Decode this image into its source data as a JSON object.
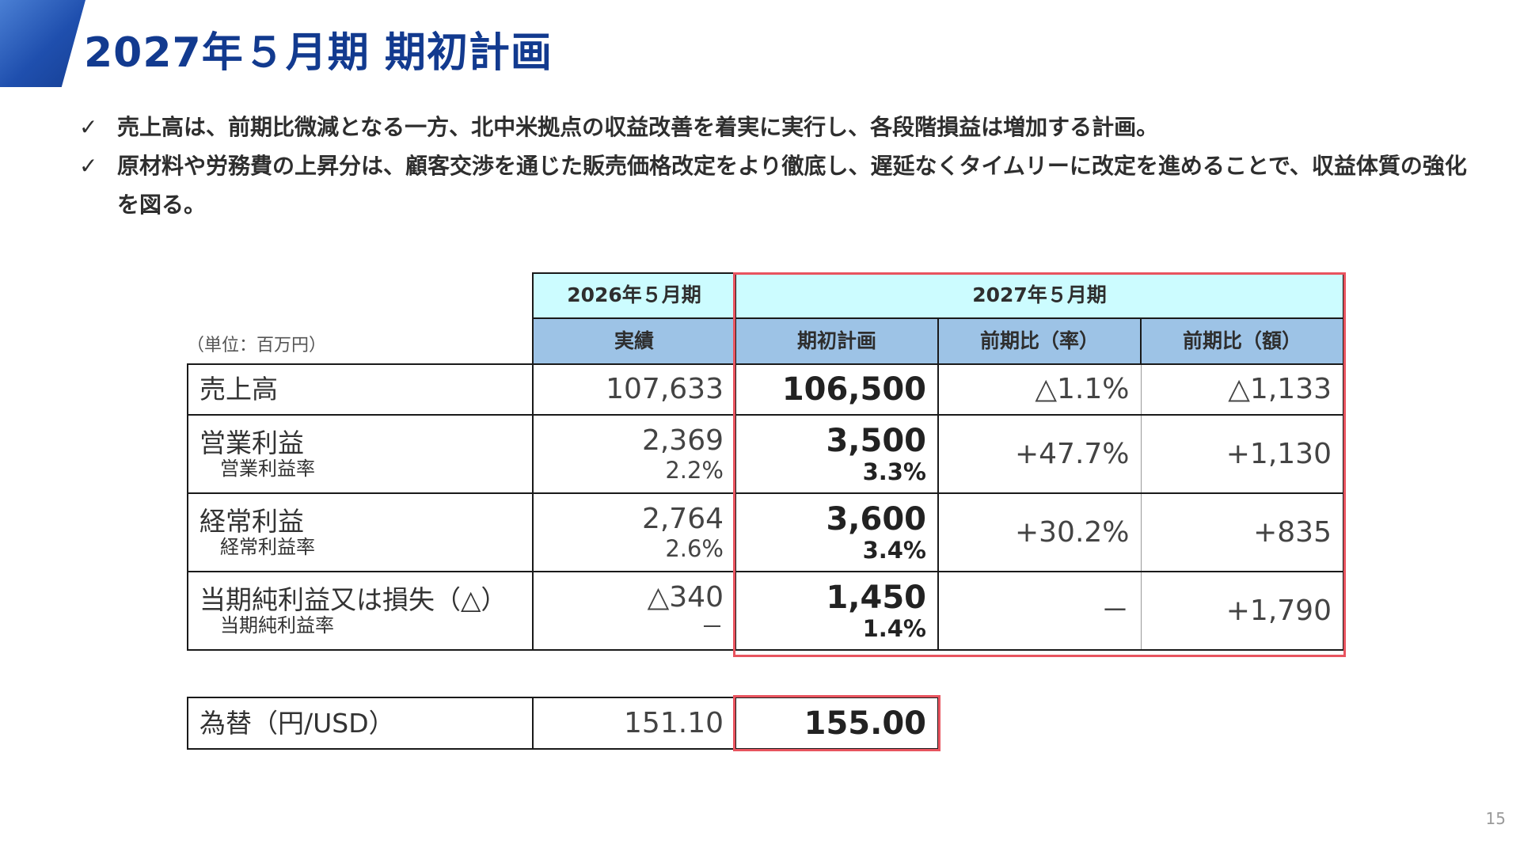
{
  "title": "2027年５月期 期初計画",
  "bullets": [
    "売上高は、前期比微減となる一方、北中米拠点の収益改善を着実に実行し、各段階損益は増加する計画。",
    "原材料や労務費の上昇分は、顧客交渉を通じた販売価格改定をより徹底し、遅延なくタイムリーに改定を進めることで、収益体質の強化を図る。"
  ],
  "bullet_mark": "✓",
  "unit": "（単位：百万円）",
  "header": {
    "fy2026": "2026年５月期",
    "fy2027": "2027年５月期",
    "actual": "実績",
    "plan": "期初計画",
    "yoy_rate": "前期比（率）",
    "yoy_amount": "前期比（額）"
  },
  "rows": [
    {
      "label": "売上高",
      "actual": "107,633",
      "plan": "106,500",
      "yoy_rate": "△1.1%",
      "yoy_amount": "△1,133"
    },
    {
      "label": "営業利益",
      "sublabel": "営業利益率",
      "actual": "2,369",
      "actual_sub": "2.2%",
      "plan": "3,500",
      "plan_sub": "3.3%",
      "yoy_rate": "+47.7%",
      "yoy_amount": "+1,130"
    },
    {
      "label": "経常利益",
      "sublabel": "経常利益率",
      "actual": "2,764",
      "actual_sub": "2.6%",
      "plan": "3,600",
      "plan_sub": "3.4%",
      "yoy_rate": "+30.2%",
      "yoy_amount": "+835"
    },
    {
      "label": "当期純利益又は損失（△）",
      "sublabel": "当期純利益率",
      "actual": "△340",
      "actual_sub": "－",
      "plan": "1,450",
      "plan_sub": "1.4%",
      "yoy_rate": "－",
      "yoy_amount": "+1,790"
    }
  ],
  "fx": {
    "label": "為替（円/USD）",
    "actual": "151.10",
    "plan": "155.00"
  },
  "page_number": "15",
  "colors": {
    "title": "#123a8f",
    "header_cyan": "#ccfcff",
    "header_blue": "#9dc3e6",
    "highlight": "#e8545f"
  }
}
